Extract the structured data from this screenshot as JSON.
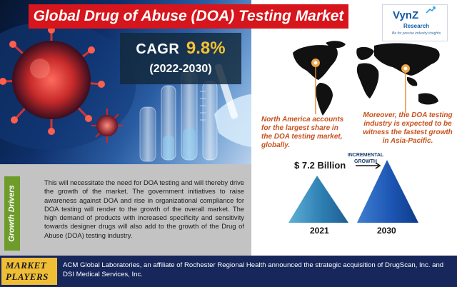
{
  "title": "Global Drug of Abuse (DOA) Testing Market",
  "logo": {
    "name": "VynZ",
    "sub": "Research",
    "tagline": "Be for precise industry insights"
  },
  "cagr": {
    "label": "CAGR",
    "value": "9.8%",
    "period": "(2022-2030)",
    "value_color": "#f4c234"
  },
  "regions": {
    "north_america": "North America accounts for the largest share in the DOA testing market, globally.",
    "asia_pacific": "Moreover, the DOA testing industry is expected to be witness the fastest growth in Asia-Pacific."
  },
  "growth": {
    "label_line1": "INCREMENTAL",
    "label_line2": "GROWTH",
    "market_value": "$ 7.2 Billion",
    "year_start": "2021",
    "year_end": "2030"
  },
  "growth_drivers": {
    "tab_label": "Growth Drivers",
    "text": "This will necessitate the need for DOA testing and will thereby drive the growth of the market. The government initiatives to raise awareness against DOA and rise in organizational compliance for DOA testing will render to the growth of the overall market. The high demand of products with increased specificity and sensitivity towards designer drugs will also add to the growth of the Drug of Abuse (DOA) testing industry."
  },
  "market_players": {
    "label_line1": "MARKET",
    "label_line2": "PLAYERS",
    "text": "ACM Global Laboratories, an affiliate of Rochester Regional Health announced the strategic acquisition of DrugScan, Inc. and DSI Medical Services, Inc."
  },
  "colors": {
    "title_bg": "#d7151c",
    "accent_orange": "#c8521d",
    "growth_tab": "#6d9c2a",
    "bottom_bg": "#17265b",
    "players_badge": "#f0be36"
  },
  "icons": [
    "virus-illustration",
    "lab-test-tubes",
    "world-map",
    "location-pin-icon",
    "triangle-2021",
    "triangle-2030",
    "growth-arrow-icon"
  ]
}
